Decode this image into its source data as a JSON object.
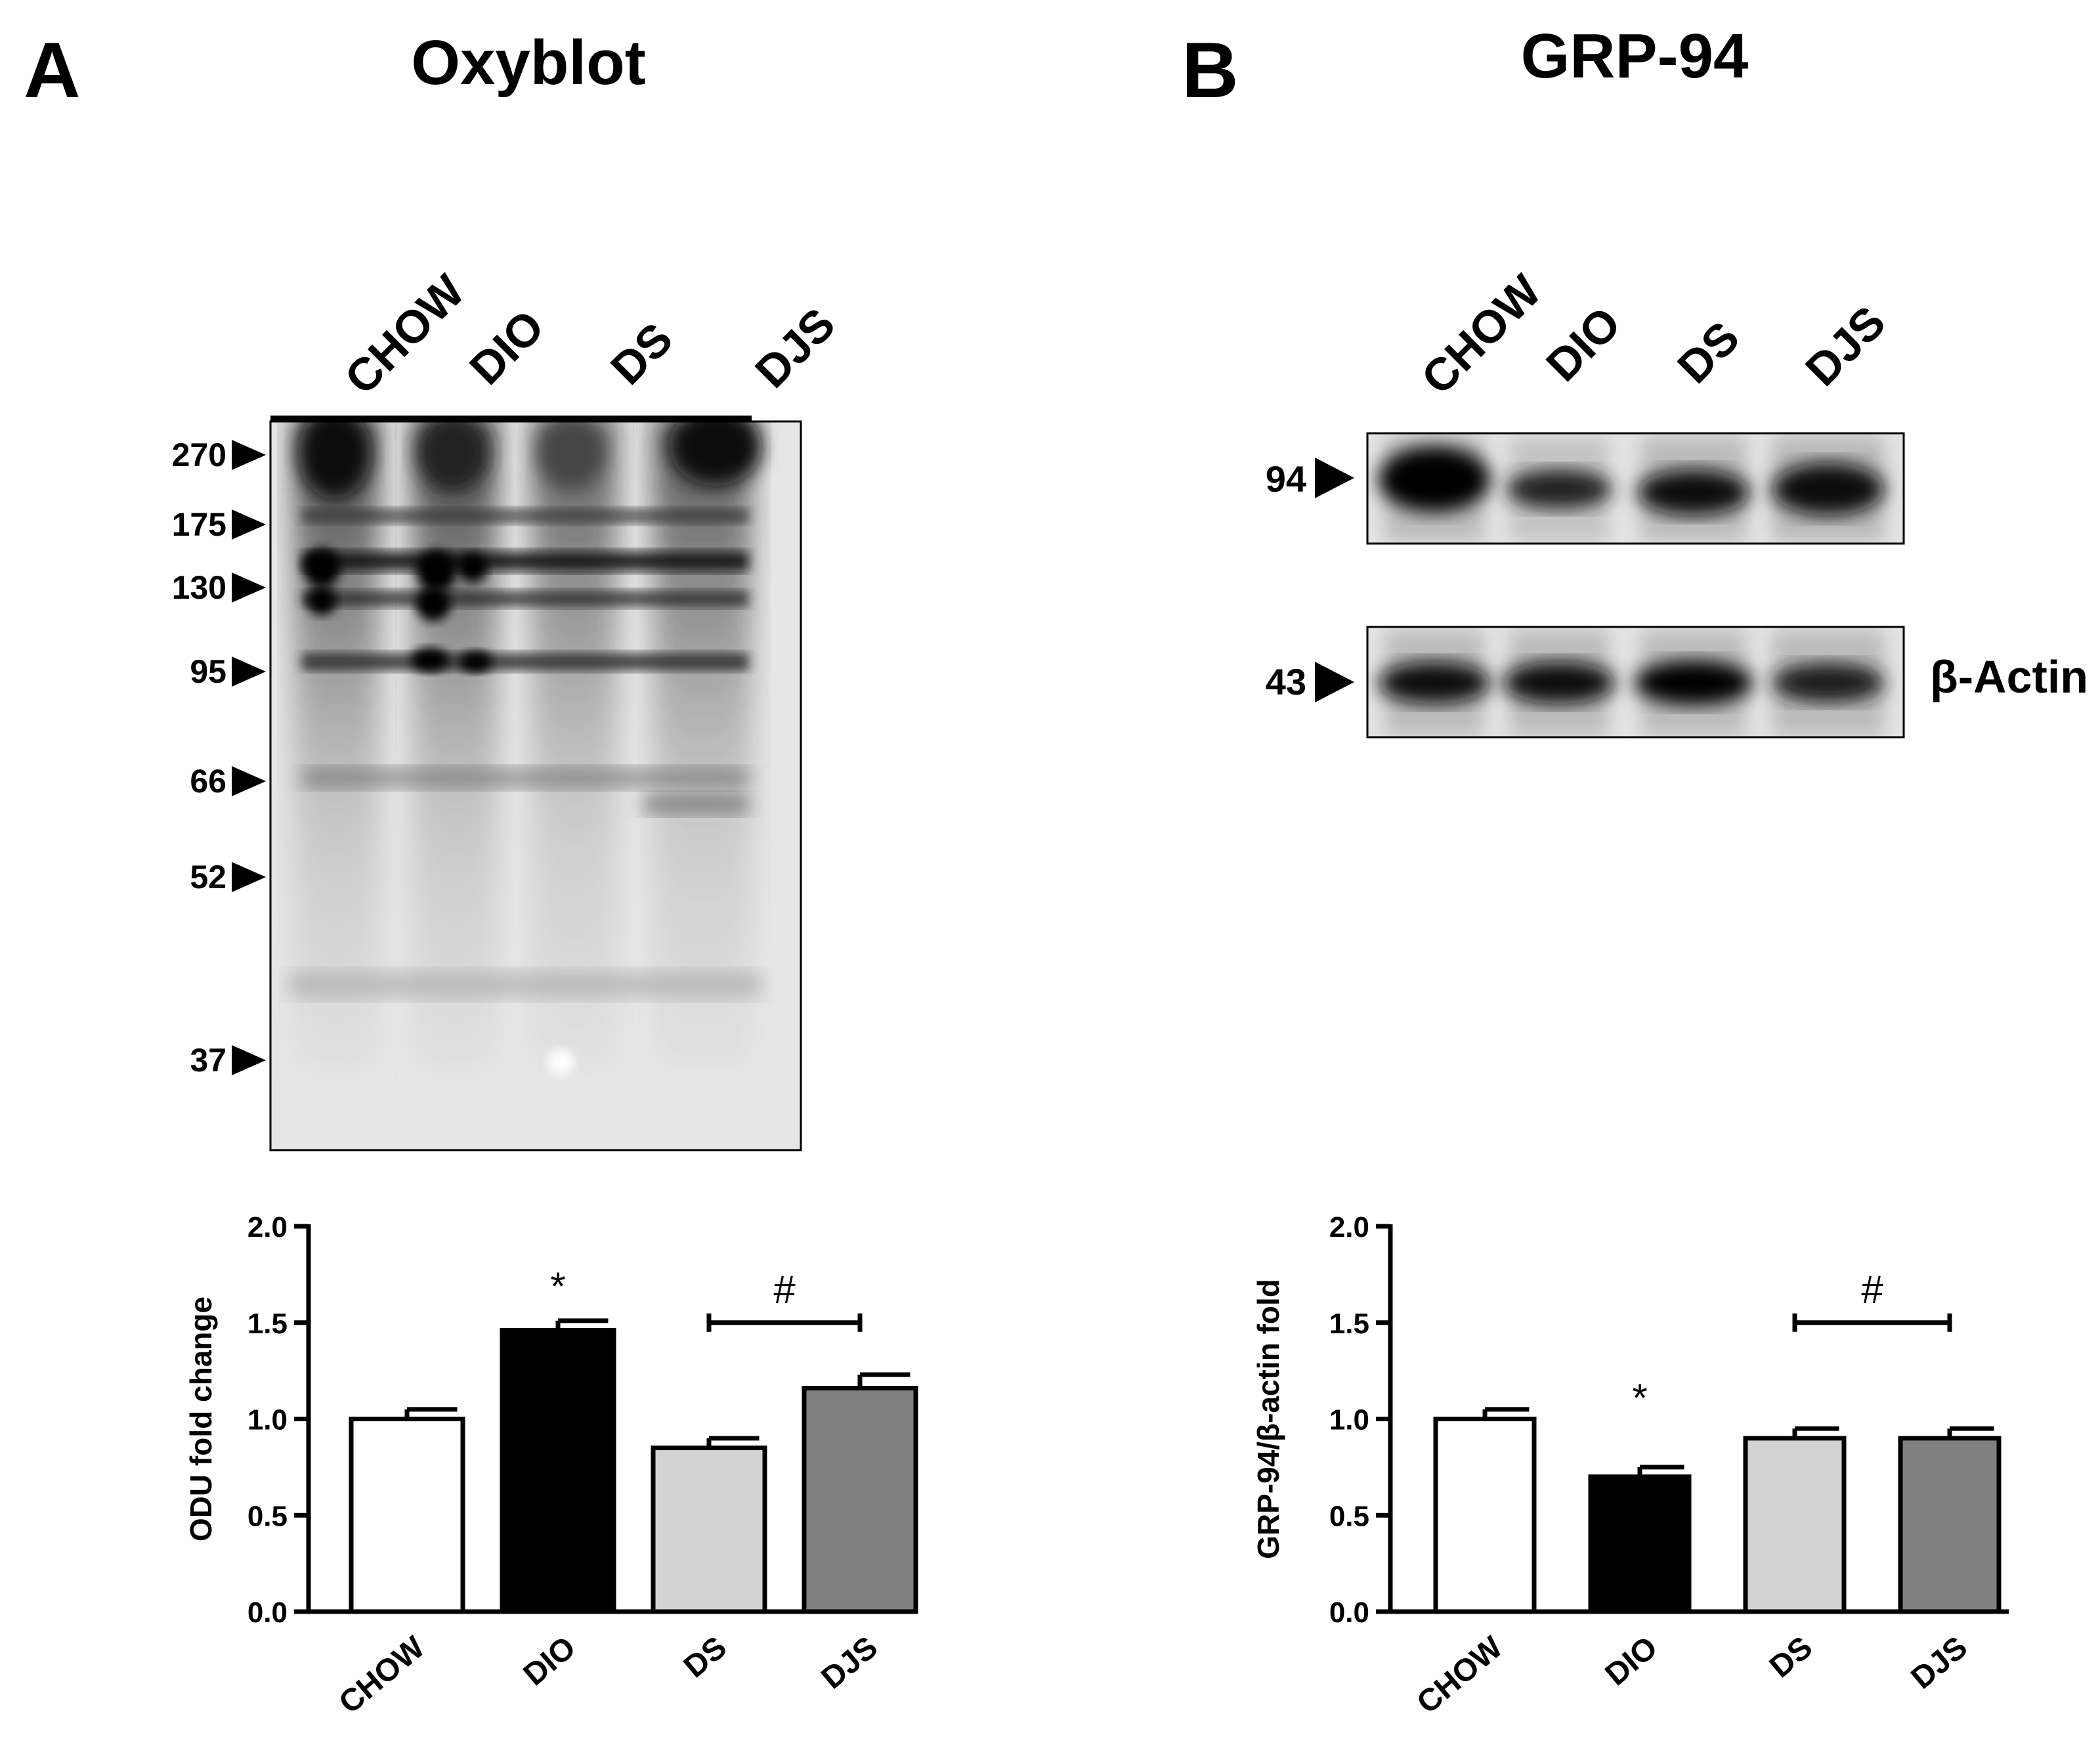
{
  "panel_a": {
    "letter": "A",
    "title": "Oxyblot",
    "lanes": [
      "CHOW",
      "DIO",
      "DS",
      "DJS"
    ],
    "mw_markers": [
      "270",
      "175",
      "130",
      "95",
      "66",
      "52",
      "37"
    ]
  },
  "panel_b": {
    "letter": "B",
    "title": "GRP-94",
    "lanes": [
      "CHOW",
      "DIO",
      "DS",
      "DJS"
    ],
    "grp94_marker": "94",
    "actin_marker": "43",
    "actin_label": "β-Actin"
  },
  "colors": {
    "CHOW": "#ffffff",
    "DIO": "#000000",
    "DS": "#d3d3d3",
    "DJS": "#808080"
  },
  "chart_data": [
    {
      "type": "bar",
      "categories": [
        "CHOW",
        "DIO",
        "DS",
        "DJS"
      ],
      "values": [
        1.0,
        1.46,
        0.85,
        1.16
      ],
      "errors": [
        0.05,
        0.05,
        0.05,
        0.07
      ],
      "ylabel": "ODU fold change",
      "ylim": [
        0,
        2.0
      ],
      "yticks": [
        "0.0",
        "0.5",
        "1.0",
        "1.5",
        "2.0"
      ],
      "annotations": {
        "star": {
          "text": "*",
          "category": "DIO"
        },
        "hash": {
          "text": "#",
          "from": "DS",
          "to": "DJS"
        }
      }
    },
    {
      "type": "bar",
      "categories": [
        "CHOW",
        "DIO",
        "DS",
        "DJS"
      ],
      "values": [
        1.0,
        0.7,
        0.9,
        0.9
      ],
      "errors": [
        0.05,
        0.05,
        0.05,
        0.05
      ],
      "ylabel": "GRP-94/β-actin fold",
      "ylim": [
        0,
        2.0
      ],
      "yticks": [
        "0.0",
        "0.5",
        "1.0",
        "1.5",
        "2.0"
      ],
      "annotations": {
        "star": {
          "text": "*",
          "category": "DIO"
        },
        "hash": {
          "text": "#",
          "from": "DS",
          "to": "DJS"
        }
      }
    }
  ]
}
